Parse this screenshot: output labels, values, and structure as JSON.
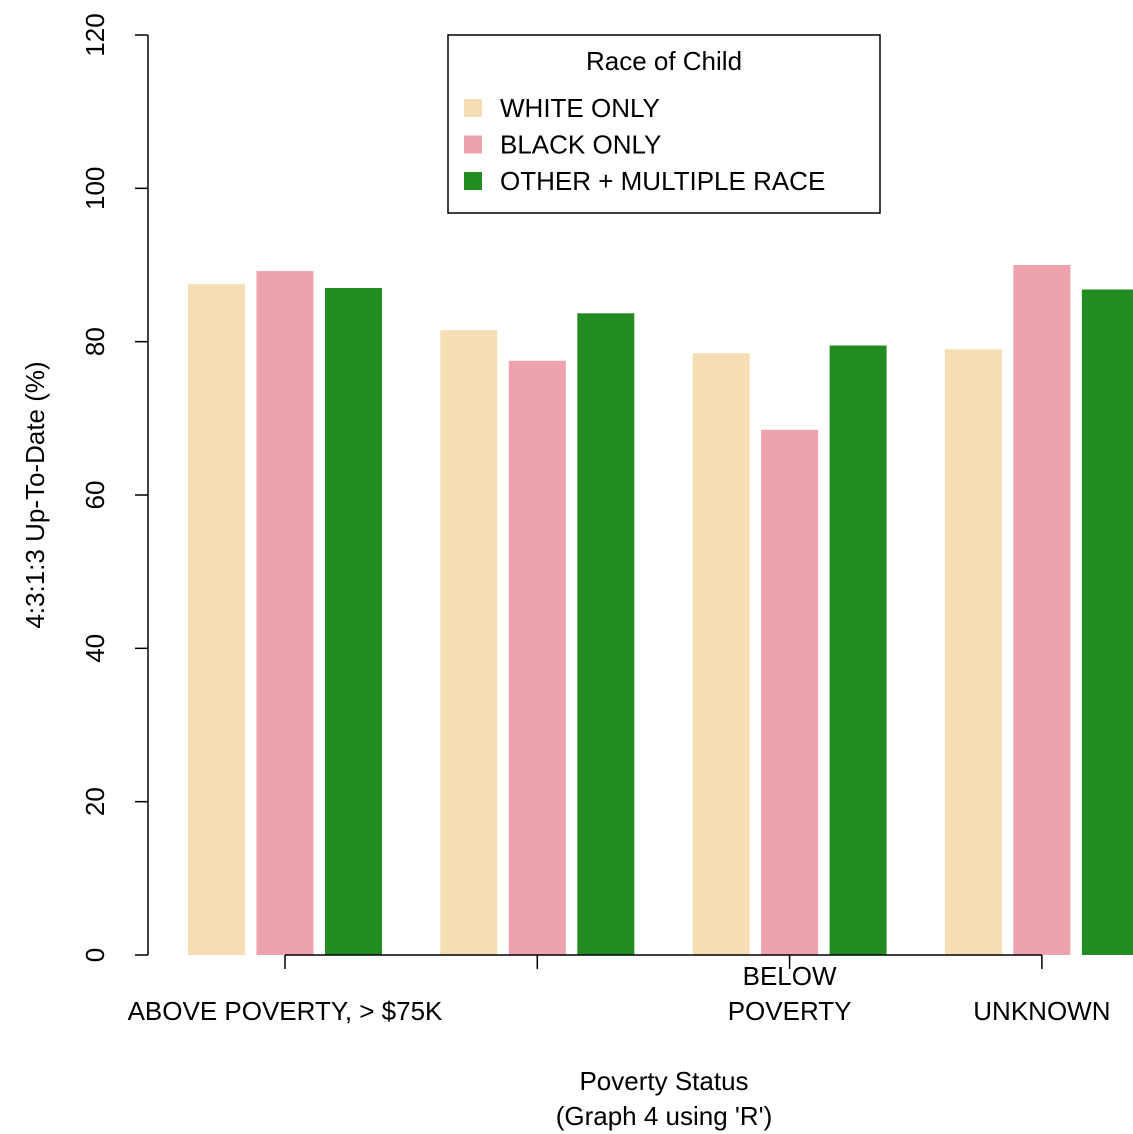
{
  "chart_data": {
    "type": "bar",
    "xlabel": "Poverty Status",
    "subtitle": "(Graph 4 using 'R')",
    "ylabel": "4:3:1:3 Up-To-Date (%)",
    "ylim": [
      0,
      120
    ],
    "yticks": [
      "0",
      "20",
      "40",
      "60",
      "80",
      "100",
      "120"
    ],
    "categories": [
      {
        "lines": [
          "ABOVE POVERTY, > $75K"
        ]
      },
      {
        "lines": []
      },
      {
        "lines": [
          "BELOW",
          "POVERTY"
        ]
      },
      {
        "lines": [
          "UNKNOWN"
        ]
      }
    ],
    "legend": {
      "title": "Race of Child",
      "placement": "top-center"
    },
    "series": [
      {
        "name": "WHITE ONLY",
        "color": "#F5DEB3",
        "values": [
          87.5,
          81.5,
          78.5,
          79.0
        ]
      },
      {
        "name": "BLACK ONLY",
        "color": "#EEA2AD",
        "values": [
          89.2,
          77.5,
          68.5,
          90.0
        ]
      },
      {
        "name": "OTHER + MULTIPLE RACE",
        "color": "#228B22",
        "values": [
          87.0,
          83.7,
          79.5,
          86.8
        ]
      }
    ],
    "grid": false
  }
}
